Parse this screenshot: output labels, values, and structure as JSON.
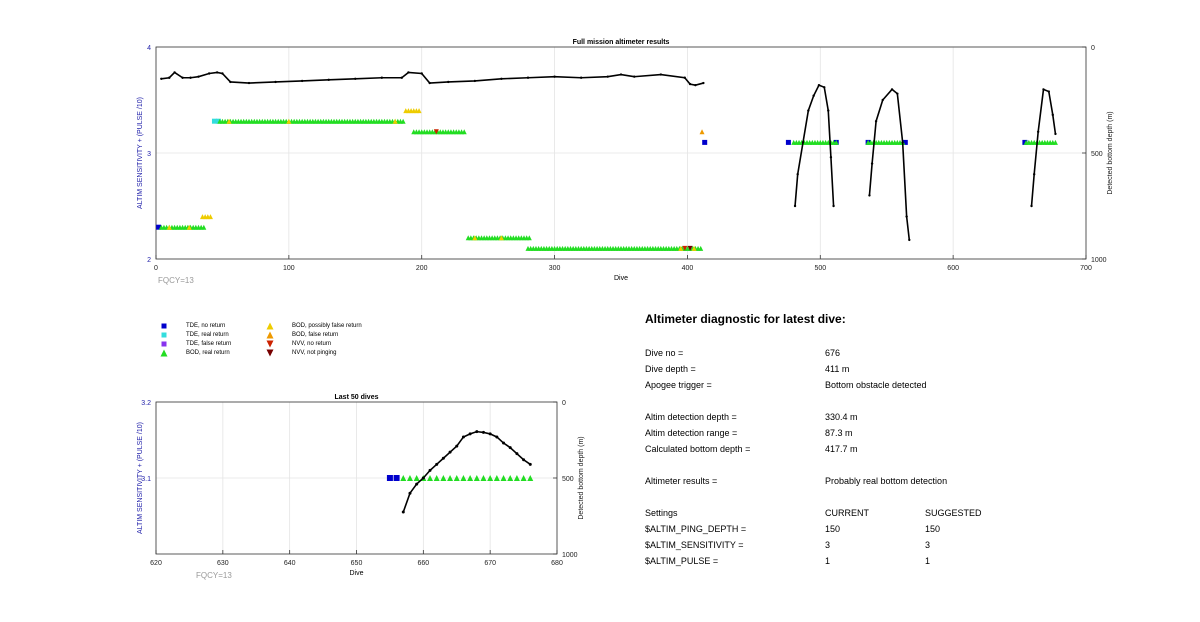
{
  "chart_data": [
    {
      "type": "scatter",
      "title": "Full mission altimeter results",
      "xlabel": "Dive",
      "ylabel": "ALTIM SENSITIVITY + (PULSE /10)",
      "ylabel_right": "Detected bottom depth (m)",
      "xlim": [
        0,
        700
      ],
      "ylim": [
        2,
        4
      ],
      "ylim_right": [
        1000,
        0
      ],
      "xticks": [
        "0",
        "100",
        "200",
        "300",
        "400",
        "500",
        "600",
        "700"
      ],
      "yticks": [
        "2",
        "3",
        "4"
      ],
      "yticks_right": [
        "0",
        "500",
        "1000"
      ],
      "grid": true,
      "note": "FQCY=13",
      "series": [
        {
          "name": "TDE, no return",
          "color": "#0000cc",
          "marker": "square",
          "points": [
            [
              2,
              2.3
            ],
            [
              413,
              3.1
            ],
            [
              476,
              3.1
            ],
            [
              512,
              3.1
            ],
            [
              536,
              3.1
            ],
            [
              564,
              3.1
            ],
            [
              654,
              3.1
            ]
          ]
        },
        {
          "name": "TDE, real return",
          "color": "#33dddd",
          "marker": "square",
          "points": [
            [
              44,
              3.3
            ],
            [
              47,
              3.3
            ]
          ]
        },
        {
          "name": "BOD, real return",
          "color": "#22dd22",
          "marker": "triangle",
          "ranges": [
            [
              4,
              36,
              2.3
            ],
            [
              48,
              187,
              3.3
            ],
            [
              194,
              232,
              3.2
            ],
            [
              235,
              282,
              2.2
            ],
            [
              280,
              410,
              2.1
            ],
            [
              480,
              512,
              3.1
            ],
            [
              536,
              562,
              3.1
            ],
            [
              655,
              678,
              3.1
            ]
          ]
        },
        {
          "name": "BOD, possibly false return",
          "color": "#eecc00",
          "marker": "triangle",
          "ranges": [
            [
              188,
              198,
              3.4
            ],
            [
              35,
              42,
              2.4
            ]
          ],
          "points": [
            [
              10,
              2.3
            ],
            [
              25,
              2.3
            ],
            [
              55,
              3.3
            ],
            [
              100,
              3.3
            ],
            [
              180,
              3.3
            ],
            [
              240,
              2.2
            ],
            [
              260,
              2.2
            ],
            [
              395,
              2.1
            ],
            [
              405,
              2.1
            ]
          ]
        },
        {
          "name": "BOD, false return",
          "color": "#ee9900",
          "marker": "triangle",
          "points": [
            [
              411,
              3.2
            ]
          ]
        },
        {
          "name": "NVV, no return",
          "color": "#cc2200",
          "marker": "triangle-down",
          "points": [
            [
              211,
              3.2
            ],
            [
              398,
              2.1
            ]
          ]
        },
        {
          "name": "NVV, not pinging",
          "color": "#770000",
          "marker": "triangle-down",
          "points": [
            [
              402,
              2.1
            ]
          ]
        },
        {
          "name": "Detected bottom depth",
          "color": "#000000",
          "marker": "line",
          "axis": "right",
          "segments": [
            [
              [
                4,
                150
              ],
              [
                10,
                145
              ],
              [
                14,
                120
              ],
              [
                20,
                145
              ],
              [
                26,
                145
              ],
              [
                32,
                140
              ],
              [
                40,
                125
              ],
              [
                46,
                120
              ],
              [
                50,
                125
              ],
              [
                56,
                165
              ],
              [
                70,
                170
              ],
              [
                90,
                165
              ],
              [
                110,
                160
              ],
              [
                130,
                155
              ],
              [
                150,
                150
              ],
              [
                170,
                145
              ],
              [
                185,
                145
              ],
              [
                190,
                120
              ],
              [
                200,
                125
              ],
              [
                206,
                170
              ],
              [
                220,
                165
              ],
              [
                240,
                160
              ],
              [
                260,
                150
              ],
              [
                280,
                145
              ],
              [
                300,
                140
              ],
              [
                320,
                145
              ],
              [
                340,
                140
              ],
              [
                350,
                130
              ],
              [
                360,
                140
              ],
              [
                380,
                130
              ],
              [
                398,
                145
              ],
              [
                402,
                175
              ],
              [
                406,
                180
              ],
              [
                412,
                170
              ]
            ],
            [
              [
                481,
                750
              ],
              [
                483,
                600
              ],
              [
                487,
                450
              ],
              [
                491,
                300
              ],
              [
                495,
                230
              ],
              [
                499,
                180
              ],
              [
                503,
                190
              ],
              [
                506,
                300
              ],
              [
                508,
                520
              ],
              [
                510,
                750
              ]
            ],
            [
              [
                537,
                700
              ],
              [
                539,
                550
              ],
              [
                542,
                350
              ],
              [
                547,
                250
              ],
              [
                554,
                200
              ],
              [
                558,
                220
              ],
              [
                562,
                450
              ],
              [
                565,
                800
              ],
              [
                567,
                910
              ]
            ],
            [
              [
                659,
                750
              ],
              [
                661,
                600
              ],
              [
                664,
                400
              ],
              [
                668,
                200
              ],
              [
                672,
                210
              ],
              [
                675,
                320
              ],
              [
                677,
                410
              ]
            ]
          ]
        }
      ]
    },
    {
      "type": "scatter",
      "title": "Last 50 dives",
      "xlabel": "Dive",
      "ylabel": "ALTIM SENSITIVITY + (PULSE /10)",
      "ylabel_right": "Detected bottom depth (m)",
      "xlim": [
        620,
        680
      ],
      "ylim": [
        3,
        3.2
      ],
      "ylim_right": [
        1000,
        0
      ],
      "xticks": [
        "620",
        "630",
        "640",
        "650",
        "660",
        "670",
        "680"
      ],
      "yticks": [
        "3.1",
        "3.2"
      ],
      "yticks_right": [
        "0",
        "500",
        "1000"
      ],
      "grid": true,
      "note": "FQCY=13",
      "series": [
        {
          "name": "TDE, no return",
          "color": "#0000cc",
          "marker": "square",
          "points": [
            [
              655,
              3.1
            ],
            [
              656,
              3.1
            ]
          ]
        },
        {
          "name": "BOD, real return",
          "color": "#22dd22",
          "marker": "triangle",
          "x": [
            657,
            658,
            659,
            660,
            661,
            662,
            663,
            664,
            665,
            666,
            667,
            668,
            669,
            670,
            671,
            672,
            673,
            674,
            675,
            676
          ],
          "y": 3.1
        },
        {
          "name": "Detected bottom depth",
          "color": "#000000",
          "marker": "line",
          "axis": "right",
          "points": [
            [
              657,
              724
            ],
            [
              658,
              600
            ],
            [
              659,
              540
            ],
            [
              660,
              500
            ],
            [
              661,
              450
            ],
            [
              662,
              410
            ],
            [
              663,
              370
            ],
            [
              664,
              330
            ],
            [
              665,
              290
            ],
            [
              666,
              230
            ],
            [
              667,
              210
            ],
            [
              668,
              195
            ],
            [
              669,
              200
            ],
            [
              670,
              210
            ],
            [
              671,
              230
            ],
            [
              672,
              270
            ],
            [
              673,
              300
            ],
            [
              674,
              340
            ],
            [
              675,
              380
            ],
            [
              676,
              410
            ]
          ]
        }
      ]
    }
  ],
  "legend": [
    {
      "label": "TDE, no return",
      "color": "#0000cc",
      "shape": "square"
    },
    {
      "label": "TDE, real return",
      "color": "#33dddd",
      "shape": "square"
    },
    {
      "label": "TDE, false return",
      "color": "#8833ee",
      "shape": "square"
    },
    {
      "label": "BOD, real return",
      "color": "#22dd22",
      "shape": "triangle"
    },
    {
      "label": "BOD, possibly false return",
      "color": "#eecc00",
      "shape": "triangle"
    },
    {
      "label": "BOD, false return",
      "color": "#ee9900",
      "shape": "triangle"
    },
    {
      "label": "NVV, no return",
      "color": "#cc2200",
      "shape": "triangle-down"
    },
    {
      "label": "NVV, not pinging",
      "color": "#770000",
      "shape": "triangle-down"
    }
  ],
  "diagnostic": {
    "title": "Altimeter diagnostic for latest dive:",
    "rows": [
      {
        "label": "Dive no =",
        "value": "676"
      },
      {
        "label": "Dive depth =",
        "value": "411 m"
      },
      {
        "label": "Apogee trigger =",
        "value": "Bottom obstacle detected"
      },
      {
        "label": "Altim detection depth =",
        "value": "330.4 m"
      },
      {
        "label": "Altim detection range =",
        "value": "87.3 m"
      },
      {
        "label": "Calculated bottom depth =",
        "value": "417.7 m"
      },
      {
        "label": "Altimeter results =",
        "value": "Probably real bottom detection"
      }
    ],
    "settings_header": {
      "label": "Settings",
      "current": "CURRENT",
      "suggested": "SUGGESTED"
    },
    "settings": [
      {
        "label": "$ALTIM_PING_DEPTH =",
        "current": "150",
        "suggested": "150"
      },
      {
        "label": "$ALTIM_SENSITIVITY =",
        "current": "3",
        "suggested": "3"
      },
      {
        "label": "$ALTIM_PULSE =",
        "current": "1",
        "suggested": "1"
      }
    ]
  }
}
